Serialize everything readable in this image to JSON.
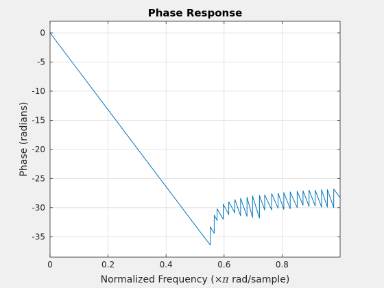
{
  "chart_data": {
    "type": "line",
    "title": "Phase Response",
    "xlabel_parts": {
      "before": "Normalized Frequency  (",
      "times": "×",
      "pi": "π",
      "after": " rad/sample)"
    },
    "ylabel": "Phase (radians)",
    "xlim": [
      0,
      1
    ],
    "ylim": [
      -38.5,
      2
    ],
    "xticks": [
      0,
      0.2,
      0.4,
      0.6,
      0.8
    ],
    "xtick_labels": [
      "0",
      "0.2",
      "0.4",
      "0.6",
      "0.8"
    ],
    "yticks": [
      0,
      -5,
      -10,
      -15,
      -20,
      -25,
      -30,
      -35
    ],
    "ytick_labels": [
      "0",
      "-5",
      "-10",
      "-15",
      "-20",
      "-25",
      "-30",
      "-35"
    ],
    "grid": true,
    "line_color": "#0072bd",
    "series": [
      {
        "x": [
          0,
          0.1,
          0.2,
          0.3,
          0.4,
          0.5,
          0.552,
          0.552,
          0.566,
          0.566,
          0.576,
          0.576,
          0.597,
          0.597,
          0.616,
          0.616,
          0.637,
          0.637,
          0.657,
          0.657,
          0.679,
          0.679,
          0.698,
          0.698,
          0.722,
          0.722,
          0.74,
          0.74,
          0.764,
          0.764,
          0.786,
          0.786,
          0.806,
          0.806,
          0.828,
          0.828,
          0.852,
          0.852,
          0.872,
          0.872,
          0.893,
          0.893,
          0.914,
          0.914,
          0.936,
          0.936,
          0.956,
          0.956,
          0.978,
          0.978,
          1.0
        ],
        "y": [
          0,
          -6.6,
          -13.2,
          -19.8,
          -26.4,
          -33.0,
          -36.4,
          -33.3,
          -34.4,
          -31.3,
          -32.2,
          -30.2,
          -32.0,
          -29.4,
          -31.2,
          -29.0,
          -30.9,
          -28.6,
          -31.4,
          -28.4,
          -31.5,
          -28.2,
          -31.7,
          -28.0,
          -31.8,
          -27.9,
          -30.4,
          -27.8,
          -30.4,
          -27.6,
          -30.1,
          -27.5,
          -30.3,
          -27.4,
          -30.2,
          -27.3,
          -30.0,
          -27.2,
          -29.6,
          -27.1,
          -29.8,
          -27.0,
          -29.7,
          -27.0,
          -29.9,
          -26.9,
          -29.9,
          -26.9,
          -30.0,
          -26.8,
          -28.3
        ]
      }
    ]
  }
}
